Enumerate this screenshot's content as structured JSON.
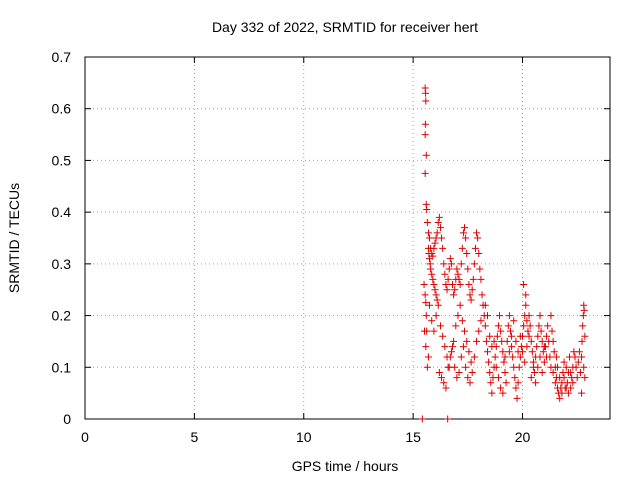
{
  "chart_data": {
    "type": "scatter",
    "title": "Day 332 of 2022, SRMTID for receiver hert",
    "xlabel": "GPS time / hours",
    "ylabel": "SRMTID / TECUs",
    "xlim": [
      0,
      24
    ],
    "ylim": [
      0,
      0.7
    ],
    "xticks": [
      0,
      5,
      10,
      15,
      20
    ],
    "yticks": [
      0,
      0.1,
      0.2,
      0.3,
      0.4,
      0.5,
      0.6,
      0.7
    ],
    "xtick_labels": [
      "0",
      "5",
      "10",
      "15",
      "20"
    ],
    "ytick_labels": [
      "0",
      "0.1",
      "0.2",
      "0.3",
      "0.4",
      "0.5",
      "0.6",
      "0.7"
    ],
    "grid": true,
    "marker": "+",
    "color": "#e00000",
    "series": [
      {
        "name": "hert",
        "points": [
          [
            15.42,
            0.0
          ],
          [
            16.58,
            0.0
          ],
          [
            15.55,
            0.64
          ],
          [
            15.57,
            0.63
          ],
          [
            15.58,
            0.615
          ],
          [
            15.56,
            0.57
          ],
          [
            15.55,
            0.55
          ],
          [
            15.6,
            0.51
          ],
          [
            15.55,
            0.475
          ],
          [
            15.6,
            0.415
          ],
          [
            15.62,
            0.405
          ],
          [
            15.65,
            0.38
          ],
          [
            15.7,
            0.36
          ],
          [
            15.75,
            0.35
          ],
          [
            15.5,
            0.26
          ],
          [
            15.55,
            0.24
          ],
          [
            15.58,
            0.225
          ],
          [
            15.6,
            0.2
          ],
          [
            15.62,
            0.17
          ],
          [
            15.52,
            0.17
          ],
          [
            15.58,
            0.14
          ],
          [
            15.65,
            0.1
          ],
          [
            15.7,
            0.12
          ],
          [
            15.7,
            0.33
          ],
          [
            15.72,
            0.32
          ],
          [
            15.75,
            0.31
          ],
          [
            15.78,
            0.3
          ],
          [
            15.8,
            0.29
          ],
          [
            15.85,
            0.28
          ],
          [
            15.9,
            0.27
          ],
          [
            15.95,
            0.26
          ],
          [
            16.0,
            0.25
          ],
          [
            16.05,
            0.24
          ],
          [
            16.1,
            0.23
          ],
          [
            15.8,
            0.33
          ],
          [
            15.85,
            0.32
          ],
          [
            15.9,
            0.315
          ],
          [
            15.95,
            0.33
          ],
          [
            16.0,
            0.34
          ],
          [
            16.05,
            0.35
          ],
          [
            16.1,
            0.36
          ],
          [
            16.15,
            0.38
          ],
          [
            16.2,
            0.39
          ],
          [
            16.25,
            0.37
          ],
          [
            16.3,
            0.35
          ],
          [
            16.35,
            0.33
          ],
          [
            16.4,
            0.3
          ],
          [
            16.45,
            0.28
          ],
          [
            16.5,
            0.26
          ],
          [
            16.55,
            0.25
          ],
          [
            16.6,
            0.27
          ],
          [
            16.65,
            0.29
          ],
          [
            16.7,
            0.31
          ],
          [
            16.75,
            0.3
          ],
          [
            16.8,
            0.26
          ],
          [
            16.85,
            0.24
          ],
          [
            16.9,
            0.25
          ],
          [
            16.95,
            0.27
          ],
          [
            17.0,
            0.29
          ],
          [
            17.05,
            0.28
          ],
          [
            17.1,
            0.27
          ],
          [
            17.15,
            0.26
          ],
          [
            17.2,
            0.3
          ],
          [
            17.25,
            0.33
          ],
          [
            17.3,
            0.36
          ],
          [
            17.35,
            0.37
          ],
          [
            17.4,
            0.35
          ],
          [
            17.45,
            0.32
          ],
          [
            17.5,
            0.29
          ],
          [
            17.55,
            0.26
          ],
          [
            17.6,
            0.24
          ],
          [
            17.65,
            0.23
          ],
          [
            17.7,
            0.25
          ],
          [
            17.75,
            0.27
          ],
          [
            17.8,
            0.3
          ],
          [
            17.85,
            0.33
          ],
          [
            17.9,
            0.36
          ],
          [
            17.95,
            0.35
          ],
          [
            18.0,
            0.32
          ],
          [
            18.05,
            0.29
          ],
          [
            18.1,
            0.27
          ],
          [
            18.15,
            0.24
          ],
          [
            18.2,
            0.22
          ],
          [
            18.25,
            0.2
          ],
          [
            15.75,
            0.22
          ],
          [
            15.85,
            0.19
          ],
          [
            15.95,
            0.17
          ],
          [
            16.05,
            0.2
          ],
          [
            16.15,
            0.22
          ],
          [
            16.25,
            0.18
          ],
          [
            16.35,
            0.16
          ],
          [
            16.45,
            0.14
          ],
          [
            16.55,
            0.12
          ],
          [
            16.65,
            0.1
          ],
          [
            16.75,
            0.13
          ],
          [
            16.85,
            0.15
          ],
          [
            16.95,
            0.18
          ],
          [
            17.05,
            0.2
          ],
          [
            17.15,
            0.22
          ],
          [
            17.25,
            0.19
          ],
          [
            17.35,
            0.17
          ],
          [
            17.45,
            0.15
          ],
          [
            17.55,
            0.13
          ],
          [
            17.65,
            0.11
          ],
          [
            16.2,
            0.09
          ],
          [
            16.3,
            0.08
          ],
          [
            16.4,
            0.07
          ],
          [
            16.5,
            0.06
          ],
          [
            16.6,
            0.1
          ],
          [
            16.7,
            0.12
          ],
          [
            16.8,
            0.14
          ],
          [
            16.9,
            0.1
          ],
          [
            17.0,
            0.08
          ],
          [
            17.1,
            0.09
          ],
          [
            17.2,
            0.12
          ],
          [
            17.3,
            0.14
          ],
          [
            17.4,
            0.1
          ],
          [
            17.5,
            0.08
          ],
          [
            17.6,
            0.07
          ],
          [
            17.7,
            0.09
          ],
          [
            17.8,
            0.12
          ],
          [
            17.9,
            0.15
          ],
          [
            18.0,
            0.17
          ],
          [
            18.1,
            0.19
          ],
          [
            18.3,
            0.18
          ],
          [
            18.35,
            0.15
          ],
          [
            18.4,
            0.13
          ],
          [
            18.45,
            0.11
          ],
          [
            18.5,
            0.09
          ],
          [
            18.55,
            0.07
          ],
          [
            18.6,
            0.05
          ],
          [
            18.65,
            0.08
          ],
          [
            18.7,
            0.1
          ],
          [
            18.75,
            0.12
          ],
          [
            18.8,
            0.14
          ],
          [
            18.85,
            0.16
          ],
          [
            18.9,
            0.18
          ],
          [
            18.95,
            0.2
          ],
          [
            19.0,
            0.17
          ],
          [
            19.05,
            0.15
          ],
          [
            19.1,
            0.13
          ],
          [
            19.15,
            0.11
          ],
          [
            19.2,
            0.09
          ],
          [
            19.25,
            0.07
          ],
          [
            18.3,
            0.22
          ],
          [
            18.4,
            0.2
          ],
          [
            18.5,
            0.16
          ],
          [
            18.6,
            0.14
          ],
          [
            18.7,
            0.15
          ],
          [
            18.8,
            0.1
          ],
          [
            18.9,
            0.08
          ],
          [
            19.0,
            0.06
          ],
          [
            19.1,
            0.05
          ],
          [
            19.2,
            0.12
          ],
          [
            19.3,
            0.15
          ],
          [
            19.35,
            0.18
          ],
          [
            19.4,
            0.2
          ],
          [
            19.45,
            0.17
          ],
          [
            19.5,
            0.14
          ],
          [
            19.55,
            0.12
          ],
          [
            19.6,
            0.1
          ],
          [
            19.65,
            0.08
          ],
          [
            19.7,
            0.06
          ],
          [
            19.75,
            0.04
          ],
          [
            19.8,
            0.07
          ],
          [
            19.85,
            0.1
          ],
          [
            19.9,
            0.12
          ],
          [
            19.95,
            0.14
          ],
          [
            20.0,
            0.16
          ],
          [
            20.05,
            0.18
          ],
          [
            20.1,
            0.2
          ],
          [
            20.15,
            0.22
          ],
          [
            20.2,
            0.19
          ],
          [
            20.25,
            0.17
          ],
          [
            19.4,
            0.13
          ],
          [
            19.5,
            0.16
          ],
          [
            19.6,
            0.19
          ],
          [
            19.7,
            0.15
          ],
          [
            19.8,
            0.13
          ],
          [
            19.9,
            0.16
          ],
          [
            20.0,
            0.13
          ],
          [
            20.1,
            0.11
          ],
          [
            20.2,
            0.14
          ],
          [
            20.3,
            0.16
          ],
          [
            20.05,
            0.26
          ],
          [
            20.15,
            0.24
          ],
          [
            20.3,
            0.2
          ],
          [
            20.35,
            0.18
          ],
          [
            20.4,
            0.15
          ],
          [
            20.45,
            0.13
          ],
          [
            20.5,
            0.11
          ],
          [
            20.55,
            0.09
          ],
          [
            20.6,
            0.12
          ],
          [
            20.65,
            0.14
          ],
          [
            20.7,
            0.16
          ],
          [
            20.75,
            0.18
          ],
          [
            20.8,
            0.2
          ],
          [
            20.85,
            0.17
          ],
          [
            20.9,
            0.15
          ],
          [
            20.95,
            0.13
          ],
          [
            21.0,
            0.11
          ],
          [
            21.05,
            0.14
          ],
          [
            21.1,
            0.16
          ],
          [
            21.15,
            0.18
          ],
          [
            20.4,
            0.08
          ],
          [
            20.5,
            0.1
          ],
          [
            20.6,
            0.07
          ],
          [
            20.7,
            0.1
          ],
          [
            20.8,
            0.12
          ],
          [
            20.9,
            0.09
          ],
          [
            21.0,
            0.14
          ],
          [
            21.1,
            0.12
          ],
          [
            21.2,
            0.15
          ],
          [
            21.25,
            0.12
          ],
          [
            21.3,
            0.2
          ],
          [
            21.35,
            0.17
          ],
          [
            21.4,
            0.15
          ],
          [
            21.45,
            0.13
          ],
          [
            21.5,
            0.1
          ],
          [
            21.55,
            0.08
          ],
          [
            21.6,
            0.06
          ],
          [
            21.65,
            0.05
          ],
          [
            21.7,
            0.04
          ],
          [
            21.75,
            0.06
          ],
          [
            21.3,
            0.1
          ],
          [
            21.4,
            0.09
          ],
          [
            21.5,
            0.07
          ],
          [
            21.55,
            0.12
          ],
          [
            21.6,
            0.1
          ],
          [
            21.7,
            0.08
          ],
          [
            21.8,
            0.07
          ],
          [
            21.85,
            0.09
          ],
          [
            21.9,
            0.11
          ],
          [
            21.95,
            0.06
          ],
          [
            21.8,
            0.05
          ],
          [
            21.9,
            0.08
          ],
          [
            22.0,
            0.1
          ],
          [
            22.05,
            0.07
          ],
          [
            22.1,
            0.09
          ],
          [
            22.15,
            0.12
          ],
          [
            22.2,
            0.06
          ],
          [
            22.25,
            0.08
          ],
          [
            22.3,
            0.1
          ],
          [
            22.35,
            0.13
          ],
          [
            22.0,
            0.06
          ],
          [
            22.1,
            0.05
          ],
          [
            22.2,
            0.09
          ],
          [
            22.3,
            0.07
          ],
          [
            22.4,
            0.12
          ],
          [
            22.45,
            0.1
          ],
          [
            22.5,
            0.08
          ],
          [
            22.55,
            0.11
          ],
          [
            22.6,
            0.13
          ],
          [
            22.65,
            0.09
          ],
          [
            22.7,
            0.05
          ],
          [
            22.7,
            0.12
          ],
          [
            22.72,
            0.15
          ],
          [
            22.75,
            0.18
          ],
          [
            22.78,
            0.2
          ],
          [
            22.8,
            0.22
          ],
          [
            22.82,
            0.21
          ],
          [
            22.85,
            0.16
          ],
          [
            22.8,
            0.1
          ],
          [
            22.85,
            0.08
          ]
        ]
      }
    ]
  }
}
